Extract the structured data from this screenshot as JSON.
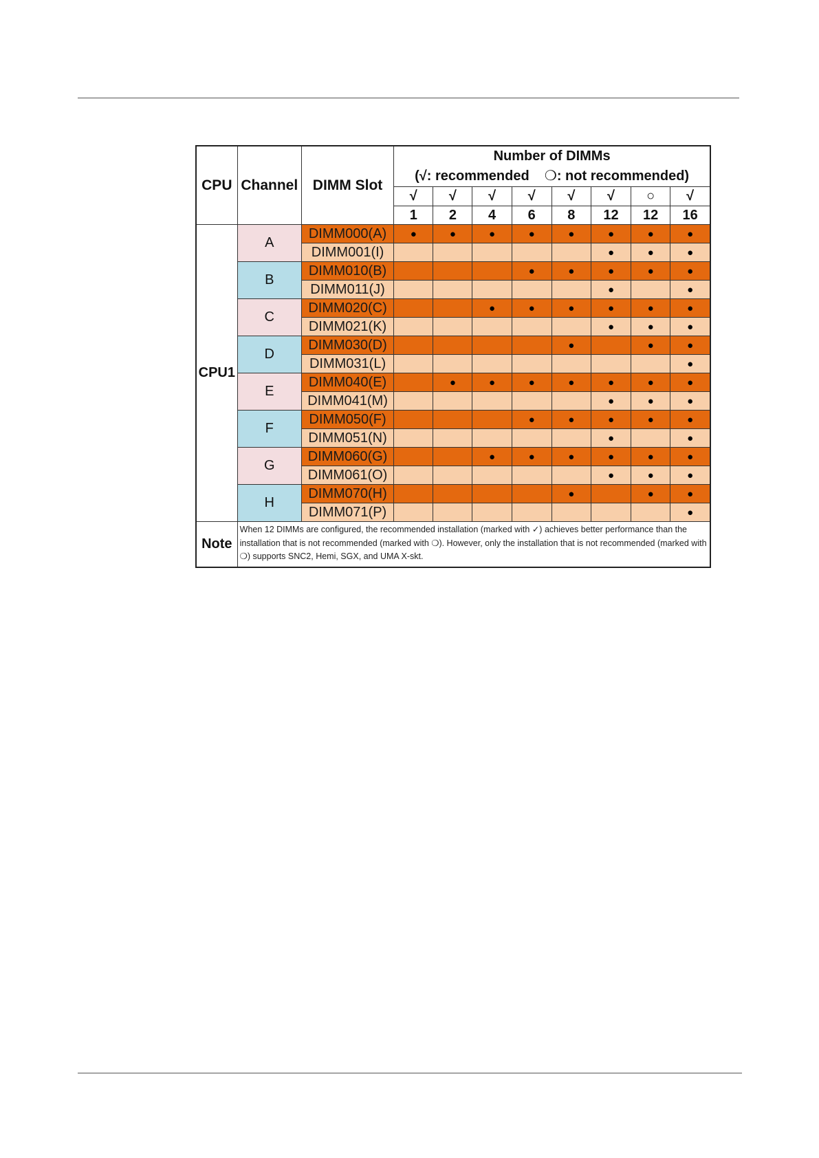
{
  "table": {
    "col_cpu": "CPU",
    "col_channel": "Channel",
    "col_slot": "DIMM Slot",
    "number_title": "Number of DIMMs",
    "legend": "(√: recommended    ❍: not recommended)",
    "config_marks": [
      "√",
      "√",
      "√",
      "√",
      "√",
      "√",
      "○",
      "√"
    ],
    "config_counts": [
      "1",
      "2",
      "4",
      "6",
      "8",
      "12",
      "12",
      "16"
    ],
    "cpu_label": "CPU1",
    "populated_symbol": "●",
    "channels": [
      {
        "name": "A",
        "color": "pink"
      },
      {
        "name": "B",
        "color": "blue"
      },
      {
        "name": "C",
        "color": "pink"
      },
      {
        "name": "D",
        "color": "blue"
      },
      {
        "name": "E",
        "color": "pink"
      },
      {
        "name": "F",
        "color": "blue"
      },
      {
        "name": "G",
        "color": "pink"
      },
      {
        "name": "H",
        "color": "blue"
      }
    ],
    "rows": [
      {
        "slot": "DIMM000(A)",
        "dots": [
          "●",
          "●",
          "●",
          "●",
          "●",
          "●",
          "●",
          "●"
        ]
      },
      {
        "slot": "DIMM001(I)",
        "dots": [
          "",
          "",
          "",
          "",
          "",
          "●",
          "●",
          "●"
        ]
      },
      {
        "slot": "DIMM010(B)",
        "dots": [
          "",
          "",
          "",
          "●",
          "●",
          "●",
          "●",
          "●"
        ]
      },
      {
        "slot": "DIMM011(J)",
        "dots": [
          "",
          "",
          "",
          "",
          "",
          "●",
          "",
          "●"
        ]
      },
      {
        "slot": "DIMM020(C)",
        "dots": [
          "",
          "",
          "●",
          "●",
          "●",
          "●",
          "●",
          "●"
        ]
      },
      {
        "slot": "DIMM021(K)",
        "dots": [
          "",
          "",
          "",
          "",
          "",
          "●",
          "●",
          "●"
        ]
      },
      {
        "slot": "DIMM030(D)",
        "dots": [
          "",
          "",
          "",
          "",
          "●",
          "",
          "●",
          "●"
        ]
      },
      {
        "slot": "DIMM031(L)",
        "dots": [
          "",
          "",
          "",
          "",
          "",
          "",
          "",
          "●"
        ]
      },
      {
        "slot": "DIMM040(E)",
        "dots": [
          "",
          "●",
          "●",
          "●",
          "●",
          "●",
          "●",
          "●"
        ]
      },
      {
        "slot": "DIMM041(M)",
        "dots": [
          "",
          "",
          "",
          "",
          "",
          "●",
          "●",
          "●"
        ]
      },
      {
        "slot": "DIMM050(F)",
        "dots": [
          "",
          "",
          "",
          "●",
          "●",
          "●",
          "●",
          "●"
        ]
      },
      {
        "slot": "DIMM051(N)",
        "dots": [
          "",
          "",
          "",
          "",
          "",
          "●",
          "",
          "●"
        ]
      },
      {
        "slot": "DIMM060(G)",
        "dots": [
          "",
          "",
          "●",
          "●",
          "●",
          "●",
          "●",
          "●"
        ]
      },
      {
        "slot": "DIMM061(O)",
        "dots": [
          "",
          "",
          "",
          "",
          "",
          "●",
          "●",
          "●"
        ]
      },
      {
        "slot": "DIMM070(H)",
        "dots": [
          "",
          "",
          "",
          "",
          "●",
          "",
          "●",
          "●"
        ]
      },
      {
        "slot": "DIMM071(P)",
        "dots": [
          "",
          "",
          "",
          "",
          "",
          "",
          "",
          "●"
        ]
      }
    ],
    "note_label": "Note",
    "note_text": "When 12 DIMMs are configured, the recommended installation (marked with ✓) achieves better performance than the installation that is not recommended (marked with ❍). However, only the installation that is not recommended (marked with ❍) supports SNC2, Hemi, SGX, and UMA X-skt."
  }
}
